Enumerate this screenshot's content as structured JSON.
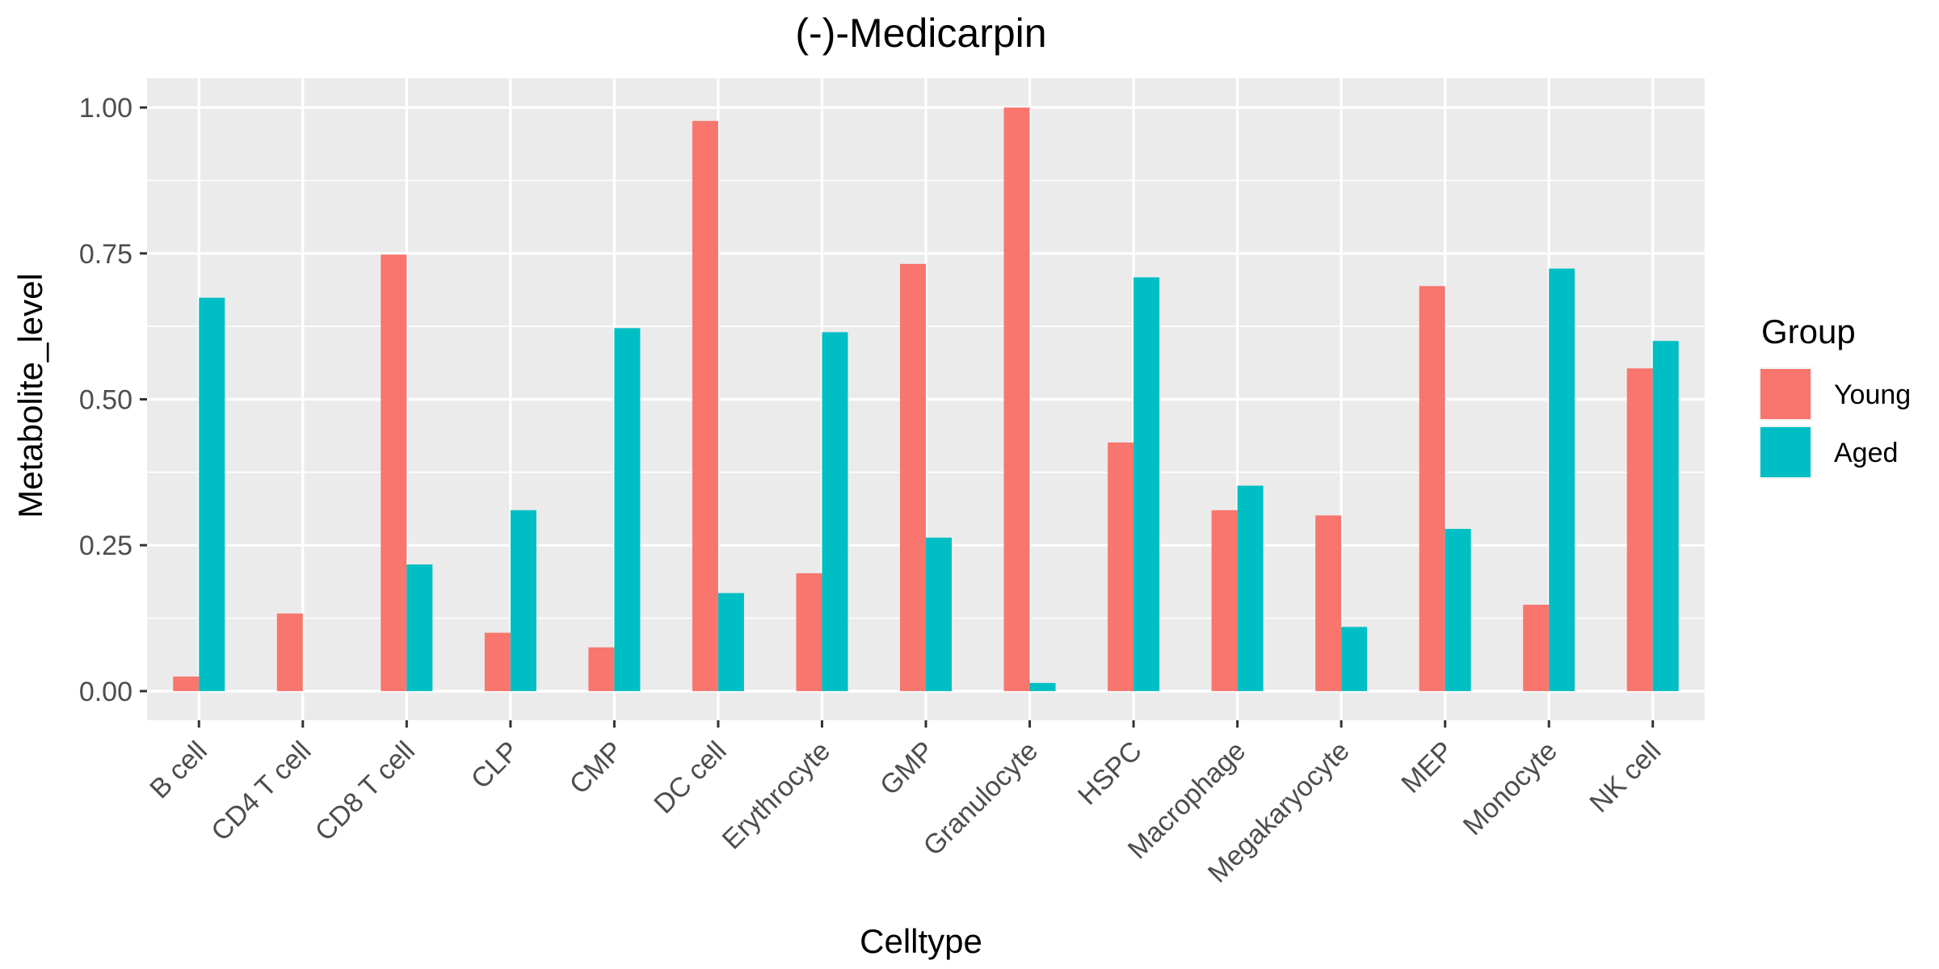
{
  "chart_data": {
    "type": "bar",
    "title": "(-)-Medicarpin",
    "xlabel": "Celltype",
    "ylabel": "Metabolite_level",
    "categories": [
      "B cell",
      "CD4 T cell",
      "CD8 T cell",
      "CLP",
      "CMP",
      "DC cell",
      "Erythrocyte",
      "GMP",
      "Granulocyte",
      "HSPC",
      "Macrophage",
      "Megakaryocyte",
      "MEP",
      "Monocyte",
      "NK cell"
    ],
    "series": [
      {
        "name": "Young",
        "color": "#F8766D",
        "values": [
          0.025,
          0.133,
          0.748,
          0.1,
          0.075,
          0.977,
          0.202,
          0.732,
          1.0,
          0.426,
          0.31,
          0.301,
          0.694,
          0.148,
          0.553
        ]
      },
      {
        "name": "Aged",
        "color": "#00BFC4",
        "values": [
          0.674,
          0.0,
          0.217,
          0.31,
          0.622,
          0.168,
          0.615,
          0.263,
          0.014,
          0.709,
          0.352,
          0.11,
          0.278,
          0.724,
          0.6
        ]
      }
    ],
    "yticks": [
      "0.00",
      "0.25",
      "0.50",
      "0.75",
      "1.00"
    ],
    "ylim": [
      -0.05,
      1.05
    ],
    "grid": true,
    "legend": {
      "title": "Group",
      "position": "right"
    },
    "panel_background": "#EBEBEB"
  }
}
